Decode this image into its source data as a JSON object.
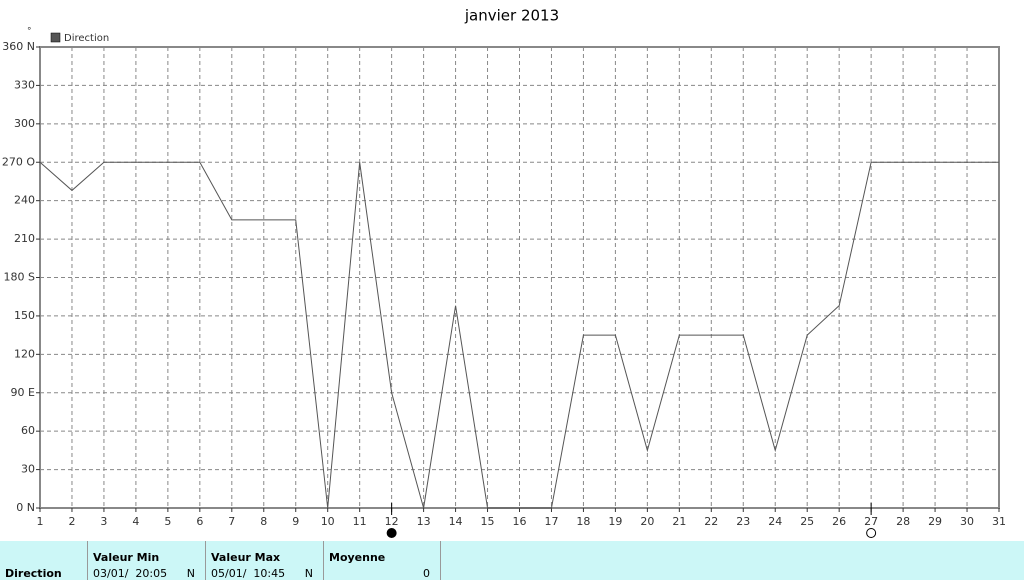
{
  "chart_data": {
    "type": "line",
    "title": "janvier 2013",
    "y_unit": "°",
    "x": [
      1,
      2,
      3,
      4,
      5,
      6,
      7,
      8,
      9,
      10,
      11,
      12,
      13,
      14,
      15,
      16,
      17,
      18,
      19,
      20,
      21,
      22,
      23,
      24,
      25,
      26,
      27,
      28,
      29,
      30,
      31
    ],
    "series": [
      {
        "name": "Direction",
        "color": "#555555",
        "values": [
          270,
          248,
          270,
          270,
          270,
          270,
          225,
          225,
          225,
          0,
          270,
          90,
          0,
          158,
          0,
          0,
          0,
          135,
          135,
          45,
          135,
          135,
          135,
          45,
          135,
          158,
          270,
          270,
          270,
          270,
          270
        ]
      }
    ],
    "xlim": [
      1,
      31
    ],
    "xticks": [
      1,
      2,
      3,
      4,
      5,
      6,
      7,
      8,
      9,
      10,
      11,
      12,
      13,
      14,
      15,
      16,
      17,
      18,
      19,
      20,
      21,
      22,
      23,
      24,
      25,
      26,
      27,
      28,
      29,
      30,
      31
    ],
    "ylim": [
      0,
      360
    ],
    "yticks": [
      {
        "value": 0,
        "label": "0 N"
      },
      30,
      60,
      {
        "value": 90,
        "label": "90 E"
      },
      120,
      150,
      {
        "value": 180,
        "label": "180 S"
      },
      210,
      240,
      {
        "value": 270,
        "label": "270 O"
      },
      300,
      330,
      {
        "value": 360,
        "label": "360 N"
      }
    ],
    "grid": true,
    "moon_markers": [
      {
        "x": 12,
        "style": "filled"
      },
      {
        "x": 27,
        "style": "open"
      }
    ]
  },
  "summary": {
    "label": "Direction",
    "columns": [
      {
        "header": "Valeur Min",
        "value": "03/01/  20:05",
        "unit": "N"
      },
      {
        "header": "Valeur Max",
        "value": "05/01/  10:45",
        "unit": "N"
      },
      {
        "header": "Moyenne",
        "value": 0
      }
    ]
  }
}
